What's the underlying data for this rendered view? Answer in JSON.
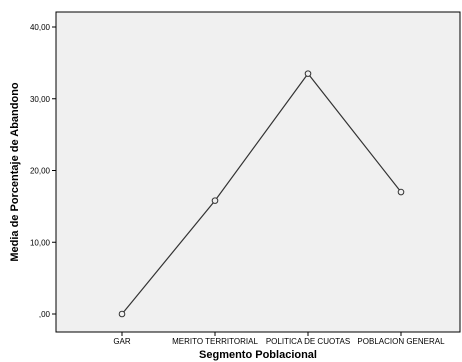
{
  "chart_data": {
    "type": "line",
    "title": "",
    "xlabel": "Segmento Poblacional",
    "ylabel": "Media de Porcentaje de Abandono",
    "categories": [
      "GAR",
      "MERITO TERRITORIAL",
      "POLITICA DE CUOTAS",
      "POBLACION GENERAL"
    ],
    "series": [
      {
        "values": [
          0.0,
          15.8,
          33.5,
          17.0
        ]
      }
    ],
    "ylim": [
      0,
      40
    ],
    "yticks": [
      0,
      10,
      20,
      30,
      40
    ],
    "ytick_labels": [
      ",00",
      "10,00",
      "20,00",
      "30,00",
      "40,00"
    ],
    "grid": false,
    "legend": "none",
    "markers": "open-circle",
    "colors": {
      "plot_background": "#f0f0f0",
      "line": "#333333",
      "marker_stroke": "#333333",
      "axis": "#000000"
    }
  }
}
